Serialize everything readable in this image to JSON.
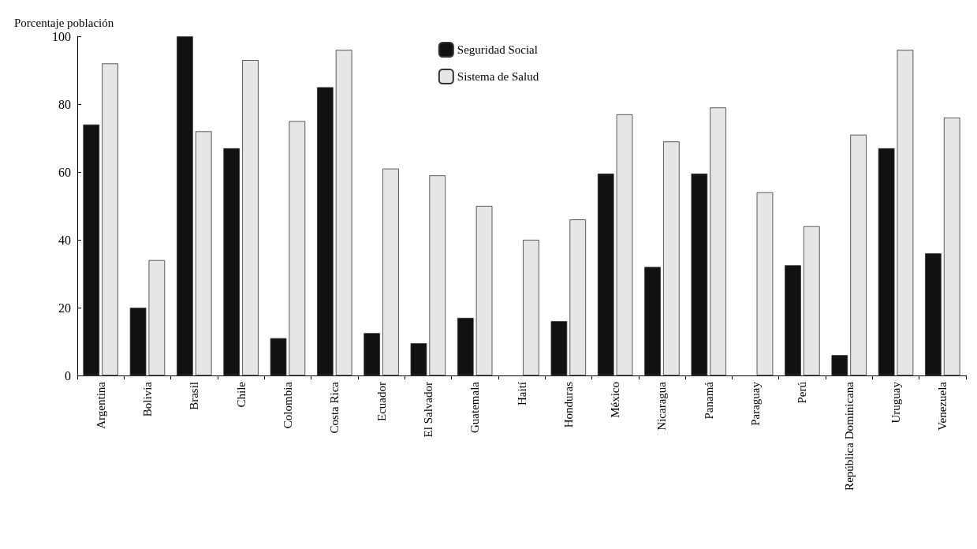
{
  "chart_data": {
    "type": "bar",
    "ylabel": "Porcentaje población",
    "categories": [
      "Argentina",
      "Bolivia",
      "Brasil",
      "Chile",
      "Colombia",
      "Costa Rica",
      "Ecuador",
      "El Salvador",
      "Guatemala",
      "Haití",
      "Honduras",
      "México",
      "Nicaragua",
      "Panamá",
      "Paraguay",
      "Perú",
      "República Dominicana",
      "Uruguay",
      "Venezuela"
    ],
    "series": [
      {
        "name": "Seguridad Social",
        "color": "#111111",
        "values": [
          74,
          20,
          100,
          67,
          11,
          85,
          12.5,
          9.5,
          17,
          null,
          16,
          59.5,
          32,
          59.5,
          null,
          32.5,
          6,
          67,
          36
        ]
      },
      {
        "name": "Sistema de Salud",
        "color": "#e6e6e6",
        "values": [
          92,
          34,
          72,
          93,
          75,
          96,
          61,
          59,
          50,
          40,
          46,
          77,
          69,
          79,
          54,
          44,
          71,
          96,
          76
        ]
      }
    ],
    "ylim": [
      0,
      100
    ],
    "yticks": [
      0,
      20,
      40,
      60,
      80,
      100
    ],
    "grid": false,
    "legend": "top"
  }
}
